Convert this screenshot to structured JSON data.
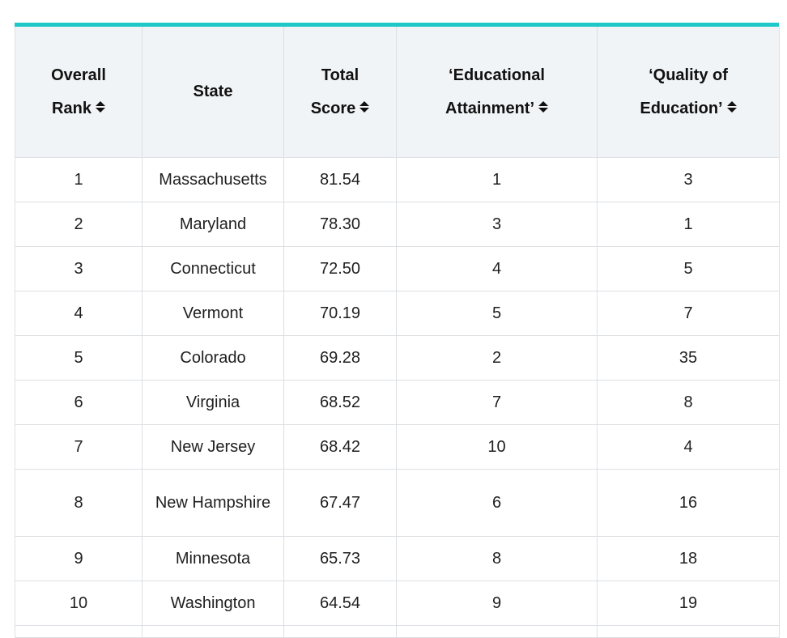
{
  "table": {
    "headers": [
      {
        "line1": "Overall",
        "line2": "Rank",
        "sortable": true
      },
      {
        "line1": "State",
        "line2": "",
        "sortable": false
      },
      {
        "line1": "Total",
        "line2": "Score",
        "sortable": true
      },
      {
        "line1": "‘Educational",
        "line2": "Attainment’",
        "sortable": true
      },
      {
        "line1": "‘Quality of",
        "line2": "Education’",
        "sortable": true
      }
    ],
    "rows": [
      {
        "rank": "1",
        "state": "Massachusetts",
        "score": "81.54",
        "attainment": "1",
        "quality": "3"
      },
      {
        "rank": "2",
        "state": "Maryland",
        "score": "78.30",
        "attainment": "3",
        "quality": "1"
      },
      {
        "rank": "3",
        "state": "Connecticut",
        "score": "72.50",
        "attainment": "4",
        "quality": "5"
      },
      {
        "rank": "4",
        "state": "Vermont",
        "score": "70.19",
        "attainment": "5",
        "quality": "7"
      },
      {
        "rank": "5",
        "state": "Colorado",
        "score": "69.28",
        "attainment": "2",
        "quality": "35"
      },
      {
        "rank": "6",
        "state": "Virginia",
        "score": "68.52",
        "attainment": "7",
        "quality": "8"
      },
      {
        "rank": "7",
        "state": "New Jersey",
        "score": "68.42",
        "attainment": "10",
        "quality": "4"
      },
      {
        "rank": "8",
        "state": "New Hampshire",
        "score": "67.47",
        "attainment": "6",
        "quality": "16"
      },
      {
        "rank": "9",
        "state": "Minnesota",
        "score": "65.73",
        "attainment": "8",
        "quality": "18"
      },
      {
        "rank": "10",
        "state": "Washington",
        "score": "64.54",
        "attainment": "9",
        "quality": "19"
      }
    ]
  },
  "colors": {
    "accent_border": "#1ec8c8",
    "header_bg": "#f1f4f6",
    "grid": "#dcdfe3"
  }
}
